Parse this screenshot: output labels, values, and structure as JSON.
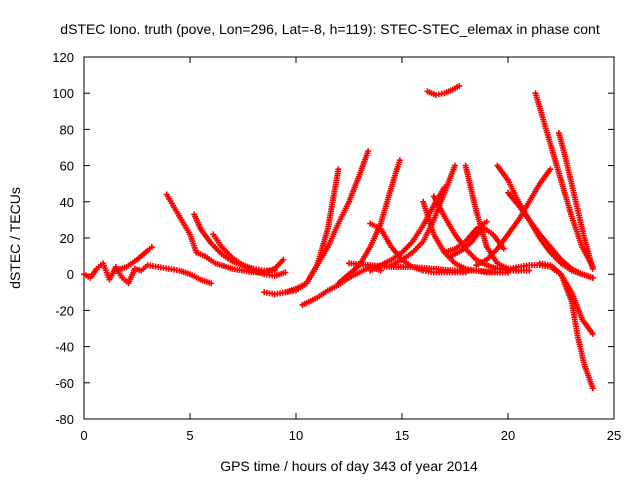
{
  "chart_data": {
    "type": "scatter",
    "title": "dSTEC Iono. truth (pove, Lon=296, Lat=-8, h=119): STEC-STEC_elemax in phase cont",
    "xlabel": "GPS time / hours of day 343 of year 2014",
    "ylabel": "dSTEC  / TECUs",
    "xlim": [
      0,
      25
    ],
    "ylim": [
      -80,
      120
    ],
    "xticks": [
      0,
      5,
      10,
      15,
      20,
      25
    ],
    "yticks": [
      -80,
      -60,
      -40,
      -20,
      0,
      20,
      40,
      60,
      80,
      100,
      120
    ],
    "xtick_labels": [
      "0",
      "5",
      "10",
      "15",
      "20",
      "25"
    ],
    "ytick_labels": [
      "-80",
      "-60",
      "-40",
      "-20",
      "0",
      "20",
      "40",
      "60",
      "80",
      "100",
      "120"
    ],
    "grid": false,
    "marker": "+",
    "color": "#ff0000",
    "series": [
      {
        "x": [
          0,
          0.3,
          0.6,
          0.9,
          1.2,
          1.5,
          1.8,
          2.1,
          2.4,
          2.7,
          3.0,
          3.5,
          4.0,
          4.5,
          5.0,
          5.5,
          6.0
        ],
        "y": [
          0,
          -2,
          3,
          6,
          -3,
          4,
          -2,
          -5,
          3,
          2,
          5,
          4,
          3,
          2,
          0,
          -3,
          -5
        ]
      },
      {
        "x": [
          1.5,
          2.0,
          2.5,
          3.0,
          3.2
        ],
        "y": [
          2,
          4,
          8,
          13,
          15
        ]
      },
      {
        "x": [
          3.9,
          4.2,
          4.6,
          5.0,
          5.3,
          5.7,
          6.2,
          7.0,
          8.0,
          8.5,
          9.0,
          9.4
        ],
        "y": [
          44,
          38,
          30,
          22,
          12,
          10,
          6,
          3,
          1,
          1,
          3,
          8
        ]
      },
      {
        "x": [
          5.2,
          5.5,
          6.0,
          6.5,
          7.0,
          7.5,
          8.0,
          8.5,
          9.0
        ],
        "y": [
          33,
          25,
          17,
          11,
          7,
          5,
          3,
          2,
          2
        ]
      },
      {
        "x": [
          6.1,
          6.5,
          7.0,
          7.5,
          8.0,
          8.5,
          9.0,
          9.5
        ],
        "y": [
          22,
          15,
          9,
          5,
          2,
          0,
          -1,
          1
        ]
      },
      {
        "x": [
          8.5,
          9.0,
          9.5,
          10.0,
          10.5,
          11.0,
          11.5,
          12.0
        ],
        "y": [
          -10,
          -11,
          -10,
          -8,
          -5,
          5,
          25,
          58
        ]
      },
      {
        "x": [
          9.5,
          10.0,
          10.5,
          11.0,
          11.5,
          12.0,
          12.5,
          13.0,
          13.4
        ],
        "y": [
          -10,
          -9,
          -5,
          5,
          15,
          28,
          40,
          55,
          68
        ]
      },
      {
        "x": [
          10.3,
          11.0,
          11.5,
          12.0,
          12.5,
          13.0,
          13.5,
          14.0
        ],
        "y": [
          -17,
          -13,
          -9,
          -6,
          -2,
          1,
          4,
          2
        ]
      },
      {
        "x": [
          12.0,
          12.5,
          13.0,
          13.5,
          14.0,
          14.3,
          14.6,
          14.9
        ],
        "y": [
          -5,
          0,
          5,
          15,
          28,
          40,
          52,
          63
        ]
      },
      {
        "x": [
          13.5,
          14.0,
          14.5,
          15.0,
          15.5,
          16.0,
          16.5,
          17.0,
          17.5,
          18.0
        ],
        "y": [
          28,
          25,
          15,
          8,
          4,
          2,
          1,
          1,
          1,
          1
        ]
      },
      {
        "x": [
          12.5,
          13.5,
          14.5,
          15.5,
          16.5,
          17.5,
          18.5,
          19.5,
          20.0
        ],
        "y": [
          6,
          5,
          4,
          4,
          3,
          2,
          2,
          1,
          1
        ]
      },
      {
        "x": [
          13.5,
          14.0,
          14.5,
          15.0,
          15.5,
          16.0,
          16.5,
          17.0
        ],
        "y": [
          2,
          5,
          8,
          12,
          18,
          27,
          38,
          48
        ]
      },
      {
        "x": [
          14.5,
          15.0,
          15.5,
          16.0,
          16.5,
          17.0,
          17.5
        ],
        "y": [
          5,
          8,
          12,
          18,
          30,
          45,
          60
        ]
      },
      {
        "x": [
          16.0,
          16.5,
          17.0,
          17.5,
          18.0,
          18.5,
          19.0,
          19.5,
          20.0
        ],
        "y": [
          40,
          22,
          12,
          6,
          3,
          2,
          1,
          1,
          1
        ]
      },
      {
        "x": [
          16.2,
          16.6,
          17.0,
          17.4,
          17.7
        ],
        "y": [
          101,
          99,
          100,
          102,
          104
        ]
      },
      {
        "x": [
          16.5,
          17.0,
          17.5,
          18.0,
          18.5,
          19.0,
          19.5,
          20.0,
          20.5
        ],
        "y": [
          43,
          32,
          22,
          14,
          8,
          5,
          3,
          2,
          2
        ]
      },
      {
        "x": [
          17.0,
          17.5,
          18.0,
          18.5,
          19.0
        ],
        "y": [
          12,
          14,
          18,
          25,
          29
        ]
      },
      {
        "x": [
          17.3,
          17.8,
          18.3,
          18.8,
          19.3,
          19.8
        ],
        "y": [
          10,
          13,
          18,
          26,
          22,
          14
        ]
      },
      {
        "x": [
          18.0,
          18.5,
          19.0,
          19.5,
          20.0,
          20.5,
          21.0
        ],
        "y": [
          60,
          35,
          15,
          6,
          3,
          2,
          2
        ]
      },
      {
        "x": [
          18.5,
          19.0,
          19.5,
          20.0,
          20.5,
          21.0,
          21.5,
          22.0
        ],
        "y": [
          5,
          8,
          14,
          22,
          30,
          40,
          50,
          58
        ]
      },
      {
        "x": [
          19.5,
          20.0,
          20.5,
          21.0,
          21.5,
          22.0,
          22.5,
          23.0,
          23.5,
          24.0
        ],
        "y": [
          60,
          52,
          40,
          30,
          20,
          12,
          6,
          2,
          0,
          -2
        ]
      },
      {
        "x": [
          20.0,
          20.5,
          21.0,
          21.5,
          22.0,
          22.5,
          23.0,
          23.5,
          24.0
        ],
        "y": [
          45,
          38,
          30,
          22,
          15,
          8,
          3,
          0,
          -2
        ]
      },
      {
        "x": [
          21.3,
          21.6,
          22.0,
          22.5,
          23.0,
          23.5,
          24.0
        ],
        "y": [
          100,
          88,
          72,
          52,
          32,
          15,
          4
        ]
      },
      {
        "x": [
          22.4,
          22.7,
          23.0,
          23.3,
          23.6,
          24.0
        ],
        "y": [
          78,
          65,
          50,
          35,
          20,
          3
        ]
      },
      {
        "x": [
          20.0,
          20.5,
          21.0,
          21.5,
          22.0,
          22.5,
          23.0,
          23.5,
          24.0
        ],
        "y": [
          3,
          4,
          5,
          5,
          4,
          0,
          -10,
          -25,
          -33
        ]
      },
      {
        "x": [
          21.5,
          22.0,
          22.5,
          23.0,
          23.3,
          23.6,
          24.0
        ],
        "y": [
          6,
          5,
          0,
          -15,
          -35,
          -50,
          -63
        ]
      }
    ]
  }
}
